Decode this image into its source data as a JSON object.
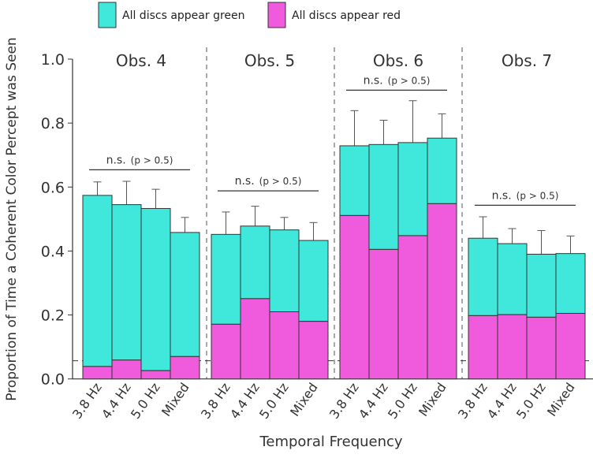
{
  "chart_data": {
    "type": "bar",
    "stacked": true,
    "ylabel": "Proportion of Time a Coherent Color Percept was Seen",
    "xlabel": "Temporal Frequency",
    "ylim": [
      0,
      1.0
    ],
    "yticks": [
      "0.0",
      "0.2",
      "0.4",
      "0.6",
      "0.8",
      "1.0"
    ],
    "categories": [
      "3.8 Hz",
      "4.4 Hz",
      "5.0 Hz",
      "Mixed"
    ],
    "legend": [
      {
        "label": "All discs appear green",
        "color": "#40E8DC"
      },
      {
        "label": "All discs appear red",
        "color": "#F05ADC"
      }
    ],
    "chance_level": 0.057,
    "groups": [
      {
        "title": "Obs. 4",
        "sig_label": "n.s.",
        "sig_p": "(p > 0.5)",
        "sig_y": 0.654,
        "total": [
          0.574,
          0.545,
          0.533,
          0.458
        ],
        "red": [
          0.039,
          0.059,
          0.026,
          0.07
        ],
        "err_top": [
          0.616,
          0.618,
          0.593,
          0.505
        ]
      },
      {
        "title": "Obs. 5",
        "sig_label": "n.s.",
        "sig_p": "(p > 0.5)",
        "sig_y": 0.588,
        "total": [
          0.452,
          0.478,
          0.466,
          0.433
        ],
        "red": [
          0.171,
          0.251,
          0.21,
          0.18
        ],
        "err_top": [
          0.522,
          0.54,
          0.505,
          0.489
        ]
      },
      {
        "title": "Obs. 6",
        "sig_label": "n.s.",
        "sig_p": "(p > 0.5)",
        "sig_y": 0.903,
        "total": [
          0.729,
          0.733,
          0.739,
          0.753
        ],
        "red": [
          0.511,
          0.405,
          0.448,
          0.548
        ],
        "err_top": [
          0.839,
          0.809,
          0.87,
          0.829
        ]
      },
      {
        "title": "Obs. 7",
        "sig_label": "n.s.",
        "sig_p": "(p > 0.5)",
        "sig_y": 0.543,
        "total": [
          0.44,
          0.423,
          0.39,
          0.392
        ],
        "red": [
          0.198,
          0.201,
          0.193,
          0.205
        ],
        "err_top": [
          0.507,
          0.47,
          0.464,
          0.447
        ]
      }
    ]
  }
}
